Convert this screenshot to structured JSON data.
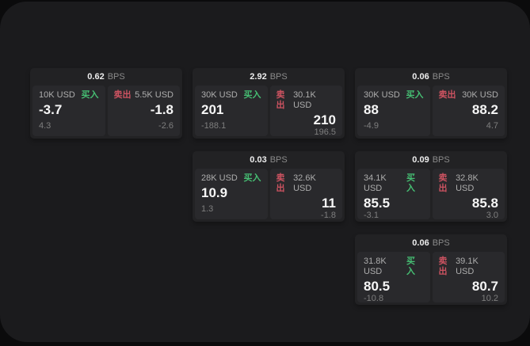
{
  "labels": {
    "bps": "BPS",
    "buy": "买入",
    "sell": "卖出"
  },
  "colors": {
    "buy": "#46be73",
    "sell": "#cd5361"
  },
  "cards": [
    {
      "bps": "0.62",
      "buy": {
        "amount": "10K USD",
        "price": "-3.7",
        "sub": "4.3"
      },
      "sell": {
        "amount": "5.5K USD",
        "price": "-1.8",
        "sub": "-2.6"
      }
    },
    {
      "bps": "2.92",
      "buy": {
        "amount": "30K USD",
        "price": "201",
        "sub": "-188.1"
      },
      "sell": {
        "amount": "30.1K USD",
        "price": "210",
        "sub": "196.5"
      }
    },
    {
      "bps": "0.06",
      "buy": {
        "amount": "30K USD",
        "price": "88",
        "sub": "-4.9"
      },
      "sell": {
        "amount": "30K USD",
        "price": "88.2",
        "sub": "4.7"
      }
    },
    {
      "bps": "0.03",
      "buy": {
        "amount": "28K USD",
        "price": "10.9",
        "sub": "1.3"
      },
      "sell": {
        "amount": "32.6K USD",
        "price": "11",
        "sub": "-1.8"
      }
    },
    {
      "bps": "0.09",
      "buy": {
        "amount": "34.1K USD",
        "price": "85.5",
        "sub": "-3.1"
      },
      "sell": {
        "amount": "32.8K USD",
        "price": "85.8",
        "sub": "3.0"
      }
    },
    {
      "bps": "0.06",
      "buy": {
        "amount": "31.8K USD",
        "price": "80.5",
        "sub": "-10.8"
      },
      "sell": {
        "amount": "39.1K USD",
        "price": "80.7",
        "sub": "10.2"
      }
    }
  ]
}
